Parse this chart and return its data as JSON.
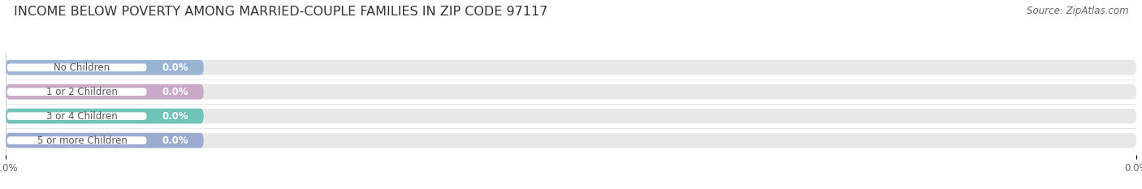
{
  "title": "INCOME BELOW POVERTY AMONG MARRIED-COUPLE FAMILIES IN ZIP CODE 97117",
  "source": "Source: ZipAtlas.com",
  "categories": [
    "No Children",
    "1 or 2 Children",
    "3 or 4 Children",
    "5 or more Children"
  ],
  "values": [
    0.0,
    0.0,
    0.0,
    0.0
  ],
  "bar_colors": [
    "#9ab4d4",
    "#c9a8c8",
    "#6ec4b8",
    "#9aabcf"
  ],
  "background_color": "#ffffff",
  "bar_bg_color": "#e8e8e8",
  "label_bg_color": "#f5f5f5",
  "title_fontsize": 11.5,
  "label_fontsize": 8.5,
  "value_fontsize": 8.5,
  "tick_fontsize": 8.5,
  "source_fontsize": 8.5
}
